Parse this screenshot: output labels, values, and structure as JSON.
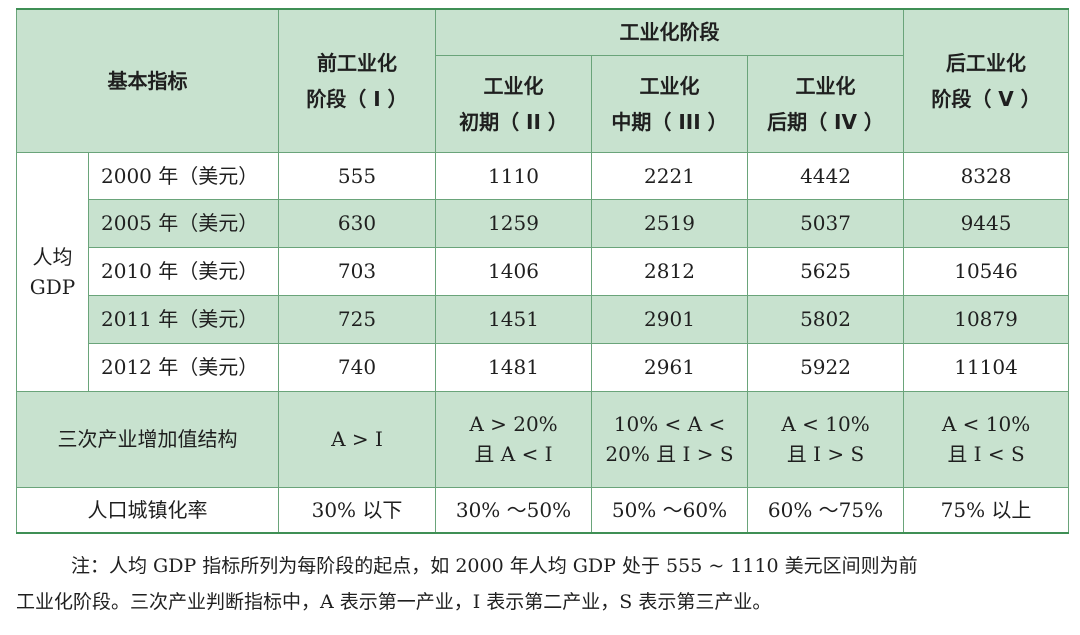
{
  "header": {
    "basic": "基本指标",
    "pre_line1": "前工业化",
    "pre_line2": "阶段（ I ）",
    "industrial": "工业化阶段",
    "early_line1": "工业化",
    "early_line2": "初期（ II ）",
    "mid_line1": "工业化",
    "mid_line2": "中期（ III ）",
    "late_line1": "工业化",
    "late_line2": "后期（ IV ）",
    "post_line1": "后工业化",
    "post_line2": "阶段（ V ）"
  },
  "gdp": {
    "label_line1": "人均",
    "label_line2": "GDP",
    "rows": [
      {
        "year": "2000 年（美元）",
        "v": [
          "555",
          "1110",
          "2221",
          "4442",
          "8328"
        ]
      },
      {
        "year": "2005 年（美元）",
        "v": [
          "630",
          "1259",
          "2519",
          "5037",
          "9445"
        ]
      },
      {
        "year": "2010 年（美元）",
        "v": [
          "703",
          "1406",
          "2812",
          "5625",
          "10546"
        ]
      },
      {
        "year": "2011 年（美元）",
        "v": [
          "725",
          "1451",
          "2901",
          "5802",
          "10879"
        ]
      },
      {
        "year": "2012 年（美元）",
        "v": [
          "740",
          "1481",
          "2961",
          "5922",
          "11104"
        ]
      }
    ]
  },
  "structure": {
    "label": "三次产业增加值结构",
    "c1": "A > I",
    "c2_line1": "A > 20%",
    "c2_line2": "且 A < I",
    "c3_line1": "10% < A <",
    "c3_line2": "20% 且 I > S",
    "c4_line1": "A < 10%",
    "c4_line2": "且 I > S",
    "c5_line1": "A < 10%",
    "c5_line2": "且 I < S"
  },
  "urban": {
    "label": "人口城镇化率",
    "v": [
      "30% 以下",
      "30% ～50%",
      "50% ～60%",
      "60% ～75%",
      "75% 以上"
    ]
  },
  "note": {
    "line1": "注：人均 GDP 指标所列为每阶段的起点，如 2000 年人均 GDP 处于 555 ~ 1110 美元区间则为前",
    "line2": "工业化阶段。三次产业判断指标中，A 表示第一产业，I 表示第二产业，S 表示第三产业。"
  }
}
